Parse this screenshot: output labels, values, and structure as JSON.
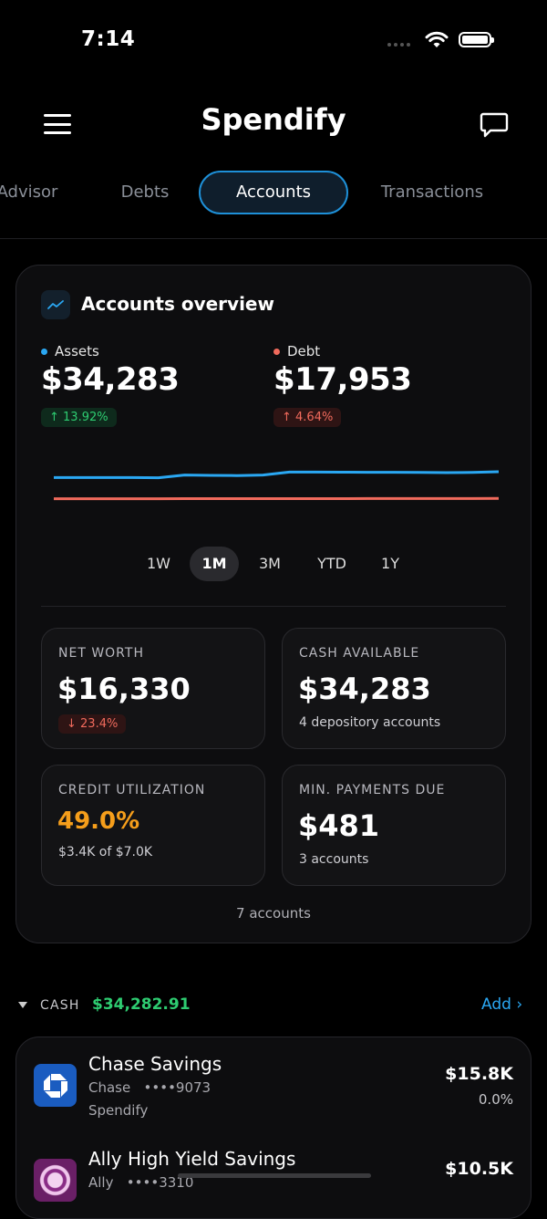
{
  "status": {
    "time": "7:14"
  },
  "header": {
    "title": "Spendify"
  },
  "tabs": [
    {
      "label": "Advisor"
    },
    {
      "label": "Debts"
    },
    {
      "label": "Accounts"
    },
    {
      "label": "Transactions"
    }
  ],
  "overview": {
    "title": "Accounts overview",
    "assets": {
      "label": "Assets",
      "value": "$34,283",
      "change": "↑ 13.92%",
      "color": "#2aa7f2"
    },
    "debt": {
      "label": "Debt",
      "value": "$17,953",
      "change": "↑ 4.64%",
      "color": "#f06a5c"
    },
    "ranges": [
      "1W",
      "1M",
      "3M",
      "YTD",
      "1Y"
    ],
    "selected_range": "1M",
    "stats": {
      "net_worth": {
        "label": "NET WORTH",
        "value": "$16,330",
        "change": "↓ 23.4%"
      },
      "cash_available": {
        "label": "CASH AVAILABLE",
        "value": "$34,283",
        "sub": "4 depository accounts"
      },
      "credit_utilization": {
        "label": "CREDIT UTILIZATION",
        "value": "49.0%",
        "sub": "$3.4K of $7.0K"
      },
      "min_payments": {
        "label": "MIN. PAYMENTS DUE",
        "value": "$481",
        "sub": "3 accounts"
      }
    },
    "accounts_count": "7 accounts"
  },
  "chart_data": {
    "type": "line",
    "series": [
      {
        "name": "Assets",
        "color": "#2aa7f2",
        "values": [
          0.2,
          0.2,
          0.2,
          0.2,
          0.18,
          0.55,
          0.5,
          0.48,
          0.55,
          0.95,
          0.95,
          0.94,
          0.93,
          0.92,
          0.9,
          0.88,
          0.9,
          1.0
        ]
      },
      {
        "name": "Debt",
        "color": "#f06a5c",
        "values": [
          0.1,
          0.1,
          0.1,
          0.1,
          0.1,
          0.12,
          0.12,
          0.12,
          0.12,
          0.13,
          0.13,
          0.13,
          0.14,
          0.14,
          0.15,
          0.15,
          0.15,
          0.2
        ]
      }
    ]
  },
  "cash_section": {
    "label": "CASH",
    "total": "$34,282.91",
    "add_label": "Add ›",
    "accounts": [
      {
        "name": "Chase Savings",
        "institution": "Chase",
        "mask": "••••9073",
        "source": "Spendify",
        "amount": "$15.8K",
        "change": "0.0%"
      },
      {
        "name": "Ally High Yield Savings",
        "institution": "Ally",
        "mask": "••••3310",
        "amount": "$10.5K"
      }
    ]
  }
}
